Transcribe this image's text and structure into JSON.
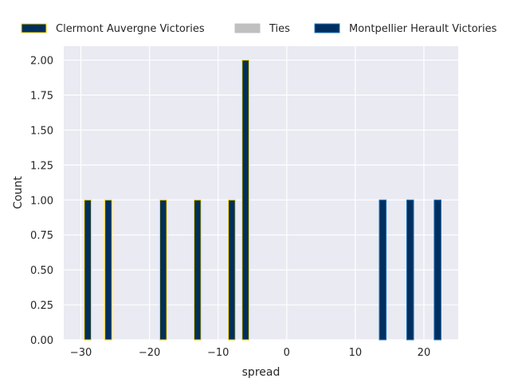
{
  "chart_data": {
    "type": "bar",
    "xlabel": "spread",
    "ylabel": "Count",
    "xlim": [
      -32.5,
      25
    ],
    "ylim": [
      0,
      2.1
    ],
    "x_ticks": [
      -30,
      -20,
      -10,
      0,
      10,
      20
    ],
    "x_tick_labels": [
      "−30",
      "−20",
      "−10",
      "0",
      "10",
      "20"
    ],
    "y_ticks": [
      0,
      0.25,
      0.5,
      0.75,
      1.0,
      1.25,
      1.5,
      1.75,
      2.0
    ],
    "y_tick_labels": [
      "0.00",
      "0.25",
      "0.50",
      "0.75",
      "1.00",
      "1.25",
      "1.50",
      "1.75",
      "2.00"
    ],
    "grid": true,
    "legend_position": "top",
    "bar_width": 1.0,
    "series": [
      {
        "name": "Clermont Auvergne Victories",
        "fill": "#002F5F",
        "edge": "#FFD700",
        "points": [
          {
            "x": -29,
            "count": 1
          },
          {
            "x": -26,
            "count": 1
          },
          {
            "x": -18,
            "count": 1
          },
          {
            "x": -13,
            "count": 1
          },
          {
            "x": -8,
            "count": 1
          },
          {
            "x": -6,
            "count": 2
          }
        ]
      },
      {
        "name": "Ties",
        "fill": "#C0C0C0",
        "edge": "#C0C0C0",
        "points": []
      },
      {
        "name": "Montpellier Herault Victories",
        "fill": "#002F5F",
        "edge": "#1C75BC",
        "points": [
          {
            "x": 14,
            "count": 1
          },
          {
            "x": 18,
            "count": 1
          },
          {
            "x": 22,
            "count": 1
          }
        ]
      }
    ],
    "plot_background": "#EAEAF2",
    "grid_color": "#FFFFFF"
  }
}
